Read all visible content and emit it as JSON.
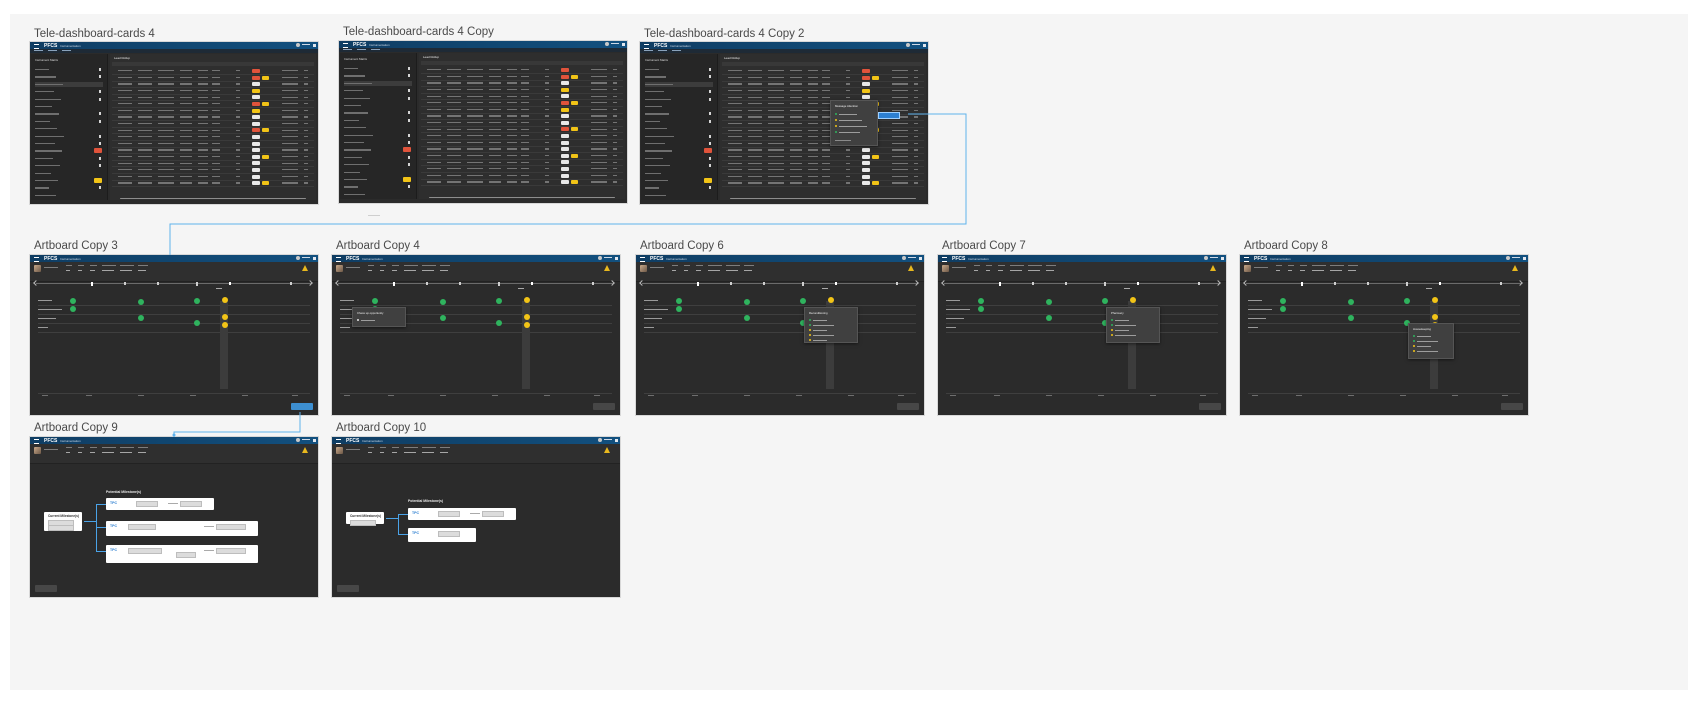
{
  "boards": {
    "b1": {
      "label": "Tele-dashboard-cards 4",
      "logo": "PFCS",
      "tab": "Instrumentation",
      "sidebar_title": "Instrument Matrix",
      "main_title": "Lead Rollup"
    },
    "b2": {
      "label": "Tele-dashboard-cards 4 Copy",
      "logo": "PFCS",
      "tab": "Instrumentation",
      "sidebar_title": "Instrument Matrix",
      "main_title": "Lead Rollup"
    },
    "b3": {
      "label": "Tele-dashboard-cards 4 Copy 2",
      "logo": "PFCS",
      "tab": "Instrumentation",
      "sidebar_title": "Instrument Matrix",
      "main_title": "Lead Rollup",
      "popup_title": "Message Attention"
    },
    "a3": {
      "label": "Artboard Copy 3",
      "logo": "PFCS",
      "tab": "Instrumentation"
    },
    "a4": {
      "label": "Artboard Copy 4",
      "logo": "PFCS",
      "tab": "Instrumentation",
      "popup_title": "Chess up opportunity"
    },
    "a6": {
      "label": "Artboard Copy 6",
      "logo": "PFCS",
      "tab": "Instrumentation",
      "popup_title": "Reconditioning"
    },
    "a7": {
      "label": "Artboard Copy 7",
      "logo": "PFCS",
      "tab": "Instrumentation",
      "popup_title": "Pharmacy"
    },
    "a8": {
      "label": "Artboard Copy 8",
      "logo": "PFCS",
      "tab": "Instrumentation",
      "popup_title": "Housekeeping"
    },
    "a9": {
      "label": "Artboard Copy 9",
      "logo": "PFCS",
      "tab": "Instrumentation",
      "current_title": "Current Milestone(s)",
      "potential_title": "Potential Milestone(s)",
      "code": "TPC"
    },
    "a10": {
      "label": "Artboard Copy 10",
      "logo": "PFCS",
      "tab": "Instrumentation",
      "current_title": "Current Milestone(s)",
      "potential_title": "Potential Milestone(s)",
      "code": "TPC"
    }
  },
  "colors": {
    "green": "#2fb35e",
    "yellow": "#f2c417",
    "red": "#e0533b",
    "blue": "#3d8fd1",
    "header": "#12507f"
  }
}
